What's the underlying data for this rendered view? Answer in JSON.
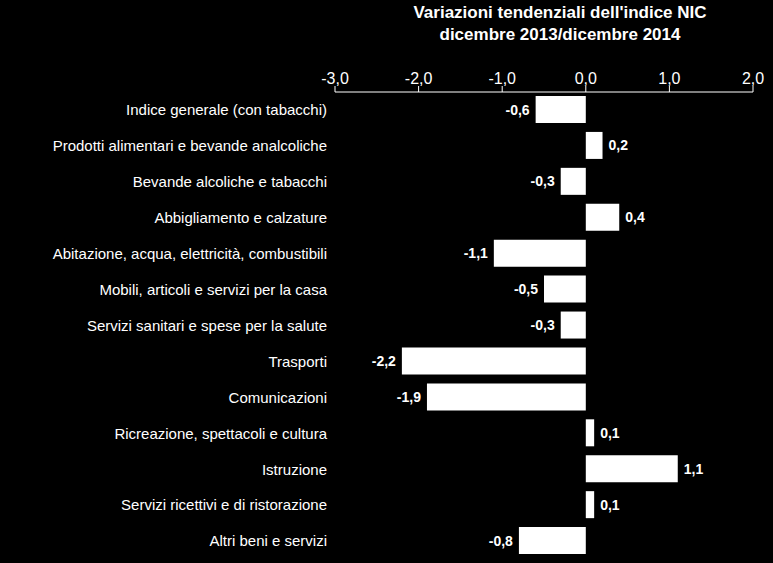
{
  "chart_data": {
    "type": "bar",
    "orientation": "horizontal",
    "title": "Variazioni tendenziali dell'indice NIC",
    "subtitle": "dicembre 2013/dicembre 2014",
    "categories": [
      "Indice generale (con tabacchi)",
      "Prodotti alimentari e bevande analcoliche",
      "Bevande alcoliche e tabacchi",
      "Abbigliamento e calzature",
      "Abitazione, acqua, elettricità, combustibili",
      "Mobili, articoli e servizi per la casa",
      "Servizi sanitari e spese per la salute",
      "Trasporti",
      "Comunicazioni",
      "Ricreazione, spettacoli e cultura",
      "Istruzione",
      "Servizi ricettivi e di ristorazione",
      "Altri beni e servizi"
    ],
    "values": [
      -0.6,
      0.2,
      -0.3,
      0.4,
      -1.1,
      -0.5,
      -0.3,
      -2.2,
      -1.9,
      0.1,
      1.1,
      0.1,
      -0.8
    ],
    "value_labels": [
      "-0,6",
      "0,2",
      "-0,3",
      "0,4",
      "-1,1",
      "-0,5",
      "-0,3",
      "-2,2",
      "-1,9",
      "0,1",
      "1,1",
      "0,1",
      "-0,8"
    ],
    "color": "#ffffff",
    "xlim": [
      -3,
      2
    ],
    "xticks": [
      {
        "value": -3,
        "label": "-3,0"
      },
      {
        "value": -2,
        "label": "-2,0"
      },
      {
        "value": -1,
        "label": "-1,0"
      },
      {
        "value": 0,
        "label": "0,0"
      },
      {
        "value": 1,
        "label": "1,0"
      },
      {
        "value": 2,
        "label": "2,0"
      }
    ],
    "grid": false,
    "data_labels": true
  }
}
